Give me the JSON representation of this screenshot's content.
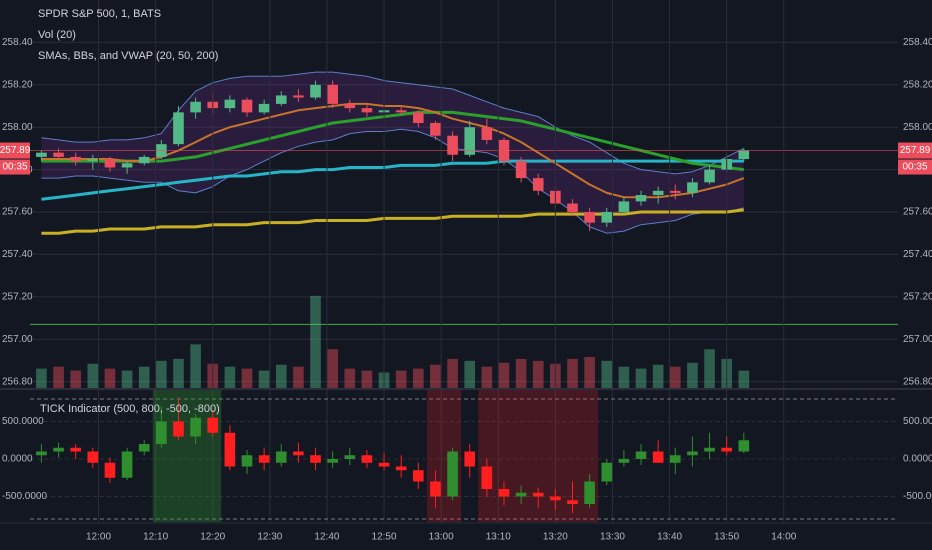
{
  "chart_data": [
    {
      "type": "candlestick",
      "title": "SPDR S&P 500, 1, BATS",
      "volume_label": "Vol (20)",
      "overlay_label": "SMAs, BBs, and VWAP (20, 50, 200)",
      "x": [
        "11:50",
        "11:53",
        "11:56",
        "11:59",
        "12:02",
        "12:05",
        "12:08",
        "12:11",
        "12:14",
        "12:17",
        "12:20",
        "12:23",
        "12:26",
        "12:29",
        "12:32",
        "12:35",
        "12:38",
        "12:41",
        "12:44",
        "12:47",
        "12:50",
        "12:53",
        "12:56",
        "12:59",
        "13:02",
        "13:05",
        "13:08",
        "13:11",
        "13:14",
        "13:17",
        "13:20",
        "13:23",
        "13:26",
        "13:29",
        "13:32",
        "13:35",
        "13:38",
        "13:41",
        "13:44",
        "13:47",
        "13:50",
        "13:53"
      ],
      "open": [
        257.86,
        257.88,
        257.86,
        257.84,
        257.85,
        257.81,
        257.83,
        257.86,
        257.92,
        258.07,
        258.12,
        258.09,
        258.13,
        258.07,
        258.11,
        258.15,
        258.14,
        258.2,
        258.11,
        258.09,
        258.07,
        258.08,
        258.07,
        258.02,
        257.96,
        257.87,
        258.0,
        257.94,
        257.84,
        257.76,
        257.7,
        257.64,
        257.6,
        257.55,
        257.6,
        257.65,
        257.68,
        257.7,
        257.69,
        257.74,
        257.8,
        257.85
      ],
      "high": [
        257.89,
        257.9,
        257.88,
        257.87,
        257.86,
        257.84,
        257.87,
        257.94,
        258.1,
        258.14,
        258.16,
        258.15,
        258.14,
        258.13,
        258.17,
        258.18,
        258.22,
        258.22,
        258.13,
        258.11,
        258.09,
        258.1,
        258.08,
        258.03,
        257.98,
        258.03,
        258.04,
        257.95,
        257.86,
        257.78,
        257.72,
        257.66,
        257.62,
        257.62,
        257.67,
        257.7,
        257.72,
        257.73,
        257.76,
        257.82,
        257.87,
        257.9
      ],
      "low": [
        257.84,
        257.85,
        257.82,
        257.8,
        257.79,
        257.78,
        257.82,
        257.85,
        257.91,
        258.04,
        258.06,
        258.07,
        258.05,
        258.06,
        258.1,
        258.12,
        258.13,
        258.09,
        258.07,
        258.05,
        258.05,
        258.06,
        258.0,
        257.94,
        257.84,
        257.86,
        257.92,
        257.82,
        257.74,
        257.68,
        257.62,
        257.58,
        257.51,
        257.53,
        257.59,
        257.63,
        257.64,
        257.66,
        257.67,
        257.73,
        257.79,
        257.84
      ],
      "close": [
        257.88,
        257.86,
        257.84,
        257.85,
        257.81,
        257.83,
        257.86,
        257.92,
        258.07,
        258.12,
        258.09,
        258.13,
        258.07,
        258.11,
        258.15,
        258.14,
        258.2,
        258.11,
        258.09,
        258.07,
        258.08,
        258.07,
        258.02,
        257.96,
        257.87,
        258.0,
        257.94,
        257.84,
        257.76,
        257.7,
        257.64,
        257.6,
        257.55,
        257.6,
        257.65,
        257.68,
        257.7,
        257.69,
        257.74,
        257.8,
        257.85,
        257.89
      ],
      "volume": [
        20,
        22,
        18,
        25,
        20,
        18,
        22,
        28,
        30,
        45,
        25,
        22,
        20,
        18,
        24,
        22,
        95,
        40,
        20,
        18,
        16,
        18,
        20,
        24,
        30,
        28,
        22,
        26,
        30,
        28,
        25,
        30,
        32,
        28,
        22,
        20,
        24,
        22,
        26,
        40,
        30,
        18
      ],
      "volume_lim": [
        0,
        400
      ],
      "up_color": "#53b987",
      "down_color": "#eb4d5c",
      "bands": {
        "color": "#5b7fc7",
        "fill": "#6a2c8c",
        "upper": [
          257.95,
          257.94,
          257.93,
          257.93,
          257.94,
          257.94,
          257.95,
          257.97,
          258.08,
          258.17,
          258.21,
          258.23,
          258.24,
          258.24,
          258.24,
          258.25,
          258.26,
          258.26,
          258.25,
          258.24,
          258.22,
          258.21,
          258.2,
          258.19,
          258.18,
          258.15,
          258.12,
          258.09,
          258.07,
          258.05,
          258.0,
          257.96,
          257.93,
          257.88,
          257.83,
          257.8,
          257.79,
          257.78,
          257.79,
          257.82,
          257.86,
          257.9
        ],
        "lower": [
          257.76,
          257.76,
          257.77,
          257.77,
          257.76,
          257.75,
          257.74,
          257.74,
          257.7,
          257.69,
          257.72,
          257.77,
          257.8,
          257.84,
          257.88,
          257.91,
          257.93,
          257.94,
          257.97,
          257.98,
          257.98,
          257.99,
          257.98,
          257.95,
          257.9,
          257.89,
          257.88,
          257.85,
          257.79,
          257.71,
          257.66,
          257.6,
          257.53,
          257.5,
          257.51,
          257.54,
          257.55,
          257.56,
          257.59,
          257.6,
          257.6,
          257.62
        ]
      },
      "overlays": [
        {
          "color": "#c9b022",
          "width": 3,
          "values": [
            257.5,
            257.5,
            257.51,
            257.51,
            257.52,
            257.52,
            257.52,
            257.53,
            257.53,
            257.53,
            257.54,
            257.54,
            257.54,
            257.55,
            257.55,
            257.55,
            257.56,
            257.56,
            257.56,
            257.56,
            257.57,
            257.57,
            257.57,
            257.57,
            257.58,
            257.58,
            257.58,
            257.58,
            257.58,
            257.59,
            257.59,
            257.59,
            257.59,
            257.59,
            257.59,
            257.6,
            257.6,
            257.6,
            257.6,
            257.6,
            257.6,
            257.61
          ]
        },
        {
          "color": "#26b5c7",
          "width": 3,
          "values": [
            257.66,
            257.67,
            257.68,
            257.69,
            257.7,
            257.71,
            257.72,
            257.73,
            257.74,
            257.75,
            257.76,
            257.77,
            257.77,
            257.78,
            257.79,
            257.79,
            257.8,
            257.8,
            257.81,
            257.81,
            257.81,
            257.82,
            257.82,
            257.82,
            257.83,
            257.83,
            257.83,
            257.84,
            257.84,
            257.84,
            257.84,
            257.84,
            257.84,
            257.84,
            257.84,
            257.84,
            257.84,
            257.84,
            257.84,
            257.84,
            257.84,
            257.84
          ]
        },
        {
          "color": "#2ca02c",
          "width": 3,
          "values": [
            257.84,
            257.84,
            257.84,
            257.84,
            257.84,
            257.84,
            257.84,
            257.84,
            257.85,
            257.86,
            257.88,
            257.9,
            257.92,
            257.94,
            257.96,
            257.98,
            258.0,
            258.02,
            258.03,
            258.04,
            258.05,
            258.06,
            258.07,
            258.07,
            258.07,
            258.06,
            258.05,
            258.04,
            258.03,
            258.01,
            257.99,
            257.97,
            257.95,
            257.93,
            257.91,
            257.89,
            257.87,
            257.85,
            257.83,
            257.82,
            257.81,
            257.8
          ]
        },
        {
          "color": "#c8742a",
          "width": 2,
          "values": [
            257.85,
            257.85,
            257.85,
            257.85,
            257.85,
            257.84,
            257.84,
            257.86,
            257.89,
            257.93,
            257.97,
            258.0,
            258.02,
            258.04,
            258.06,
            258.08,
            258.09,
            258.1,
            258.11,
            258.11,
            258.1,
            258.1,
            258.09,
            258.07,
            258.04,
            258.02,
            258.0,
            257.97,
            257.93,
            257.88,
            257.83,
            257.78,
            257.73,
            257.69,
            257.67,
            257.67,
            257.67,
            257.68,
            257.69,
            257.71,
            257.73,
            257.76
          ]
        }
      ],
      "levels": [
        {
          "value": 257.07,
          "color": "#3cb043"
        }
      ],
      "price_tag": {
        "value": 257.89,
        "label": "257.89",
        "countdown": "00:35",
        "color": "#eb4d5c"
      },
      "xlim": [
        "11:48",
        "14:20"
      ],
      "ylim": [
        256.77,
        258.6
      ],
      "yticks": [
        {
          "value": 258.4,
          "label": "258.40"
        },
        {
          "value": 258.2,
          "label": "258.20"
        },
        {
          "value": 258.0,
          "label": "258.00"
        },
        {
          "value": 257.8,
          "label": "257.80"
        },
        {
          "value": 257.6,
          "label": "257.60"
        },
        {
          "value": 257.4,
          "label": "257.40"
        },
        {
          "value": 257.2,
          "label": "257.20"
        },
        {
          "value": 257.0,
          "label": "257.00"
        },
        {
          "value": 256.8,
          "label": "256.80"
        }
      ],
      "grid": true
    },
    {
      "type": "candlestick",
      "title": "TICK Indicator (500, 800, -500, -800)",
      "x": [
        "11:50",
        "11:53",
        "11:56",
        "11:59",
        "12:02",
        "12:05",
        "12:08",
        "12:11",
        "12:14",
        "12:17",
        "12:20",
        "12:23",
        "12:26",
        "12:29",
        "12:32",
        "12:35",
        "12:38",
        "12:41",
        "12:44",
        "12:47",
        "12:50",
        "12:53",
        "12:56",
        "12:59",
        "13:02",
        "13:05",
        "13:08",
        "13:11",
        "13:14",
        "13:17",
        "13:20",
        "13:23",
        "13:26",
        "13:29",
        "13:32",
        "13:35",
        "13:38",
        "13:41",
        "13:44",
        "13:47",
        "13:50",
        "13:53"
      ],
      "open": [
        50,
        100,
        150,
        100,
        -50,
        -250,
        100,
        200,
        500,
        300,
        550,
        350,
        -100,
        50,
        -50,
        100,
        50,
        -50,
        0,
        50,
        -50,
        -100,
        -150,
        -300,
        -500,
        100,
        -100,
        -400,
        -500,
        -450,
        -500,
        -550,
        -600,
        -300,
        -50,
        0,
        100,
        -50,
        50,
        100,
        150,
        100
      ],
      "high": [
        200,
        220,
        200,
        150,
        20,
        150,
        250,
        700,
        820,
        600,
        650,
        450,
        120,
        150,
        200,
        220,
        150,
        100,
        150,
        120,
        80,
        50,
        -50,
        -150,
        150,
        200,
        0,
        -300,
        -350,
        -380,
        -400,
        -300,
        -200,
        0,
        120,
        200,
        250,
        150,
        300,
        350,
        300,
        350
      ],
      "low": [
        -50,
        20,
        0,
        -120,
        -320,
        -280,
        50,
        150,
        250,
        200,
        300,
        -150,
        -200,
        -150,
        -100,
        -50,
        -150,
        -120,
        -80,
        -120,
        -150,
        -250,
        -400,
        -650,
        -550,
        -250,
        -500,
        -620,
        -600,
        -650,
        -680,
        -720,
        -650,
        -350,
        -100,
        -80,
        -50,
        -200,
        -100,
        0,
        50,
        80
      ],
      "close": [
        100,
        150,
        100,
        -50,
        -250,
        100,
        200,
        500,
        300,
        550,
        350,
        -100,
        50,
        -50,
        100,
        50,
        -50,
        0,
        50,
        -50,
        -100,
        -150,
        -300,
        -500,
        100,
        -100,
        -400,
        -500,
        -450,
        -500,
        -550,
        -600,
        -300,
        -50,
        0,
        100,
        -50,
        50,
        100,
        150,
        100,
        250
      ],
      "up_color": "#2f8f2f",
      "down_color": "#ff1f1f",
      "highlight_above": 500,
      "highlight_below": -500,
      "levels": [
        800,
        -800
      ],
      "xlim": [
        "11:48",
        "14:20"
      ],
      "ylim": [
        -840,
        920
      ],
      "yticks": [
        {
          "value": 500,
          "label": "500.0000"
        },
        {
          "value": 0,
          "label": "0.0000"
        },
        {
          "value": -500,
          "label": "-500.0000"
        }
      ],
      "xticks": [
        "12:00",
        "12:10",
        "12:20",
        "12:30",
        "12:40",
        "12:50",
        "13:00",
        "13:10",
        "13:20",
        "13:30",
        "13:40",
        "13:50",
        "14:00"
      ],
      "grid": true
    }
  ]
}
